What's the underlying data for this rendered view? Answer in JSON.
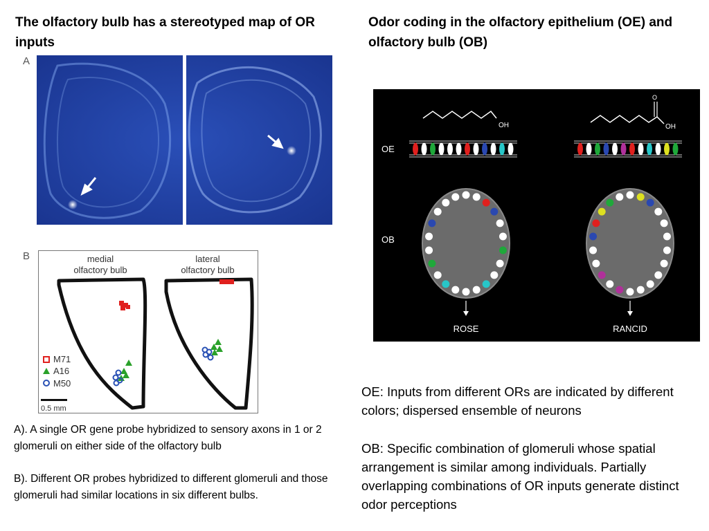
{
  "left": {
    "title": "The olfactory bulb has a stereotyped map of OR inputs",
    "panel_a": {
      "label": "A"
    },
    "panel_b": {
      "label": "B",
      "medial_label_line1": "medial",
      "medial_label_line2": "olfactory bulb",
      "lateral_label_line1": "lateral",
      "lateral_label_line2": "olfactory bulb",
      "legend": [
        {
          "name": "M71",
          "color": "#e0201e",
          "marker": "square"
        },
        {
          "name": "A16",
          "color": "#2aa12a",
          "marker": "triangle"
        },
        {
          "name": "M50",
          "color": "#2850b4",
          "marker": "circle"
        }
      ],
      "scale_bar": "0.5 mm"
    },
    "caption_a": "A). A single OR gene probe hybridized to sensory axons in 1 or 2 glomeruli on either side of the olfactory bulb",
    "caption_b": "B). Different OR probes hybridized to different glomeruli and those glomeruli had similar locations in six different bulbs."
  },
  "right": {
    "title": "Odor coding in the olfactory epithelium (OE) and olfactory bulb (OB)",
    "figure": {
      "oe_label": "OE",
      "ob_label": "OB",
      "molecule_left_group": "OH",
      "molecule_right_group_o": "O",
      "molecule_right_group_oh": "OH",
      "odor_left": "ROSE",
      "odor_right": "RANCID",
      "colors": {
        "red": "#e0201e",
        "green": "#1fa83a",
        "blue": "#2a48b0",
        "cyan": "#27c6c8",
        "yellow": "#dde020",
        "magenta": "#b0309a",
        "white": "#ffffff",
        "bulb_fill": "#6b6b6b"
      }
    },
    "note_oe": "OE: Inputs from different ORs are indicated by different colors; dispersed ensemble of neurons",
    "note_ob": "OB: Specific combination of glomeruli whose spatial arrangement is similar among individuals. Partially overlapping combinations of OR inputs generate distinct odor perceptions"
  }
}
